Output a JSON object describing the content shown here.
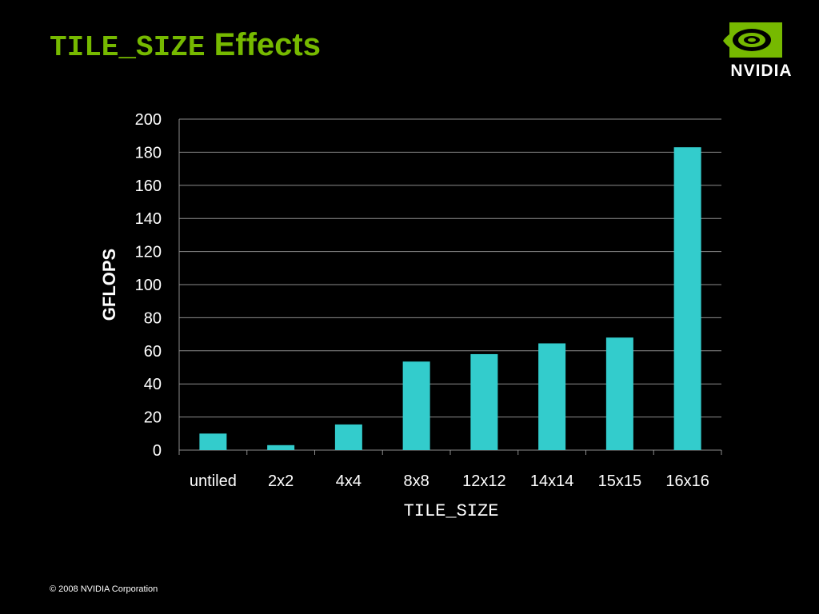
{
  "slide": {
    "title_code": "TILE_SIZE",
    "title_text": "Effects",
    "footer": "© 2008 NVIDIA Corporation"
  },
  "logo": {
    "icon": "nvidia-eye-icon",
    "text": "NVIDIA",
    "color": "#76b900"
  },
  "chart_data": {
    "type": "bar",
    "title": "",
    "xlabel": "TILE_SIZE",
    "ylabel": "GFLOPS",
    "categories": [
      "untiled",
      "2x2",
      "4x4",
      "8x8",
      "12x12",
      "14x14",
      "15x15",
      "16x16"
    ],
    "values": [
      10,
      3,
      15.5,
      53.5,
      58,
      64.5,
      68,
      183
    ],
    "ylim": [
      0,
      200
    ],
    "yticks": [
      0,
      20,
      40,
      60,
      80,
      100,
      120,
      140,
      160,
      180,
      200
    ],
    "grid": true,
    "legend": "none",
    "bar_color": "#33cccc"
  }
}
